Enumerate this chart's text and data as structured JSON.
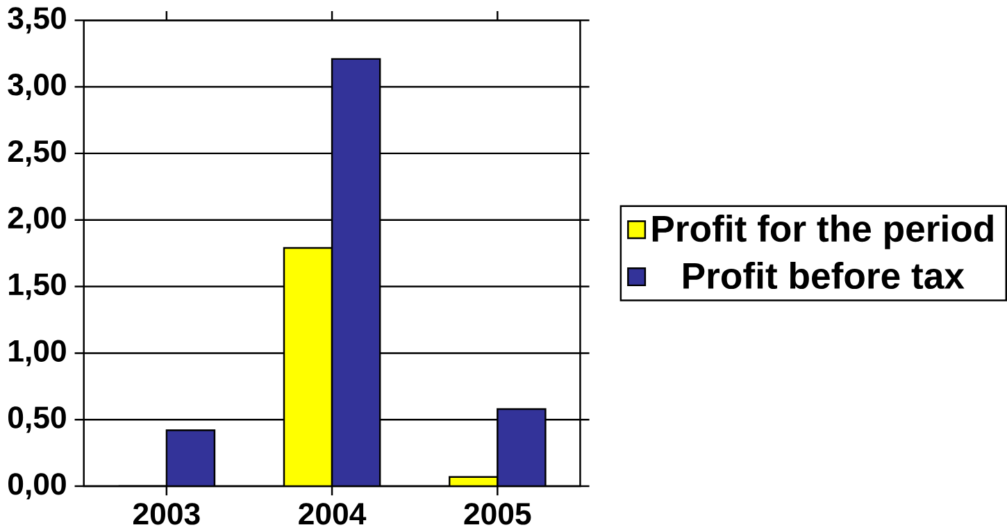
{
  "chart_data": {
    "type": "bar",
    "categories": [
      "2003",
      "2004",
      "2005"
    ],
    "series": [
      {
        "name": "Profit for the period",
        "color": "#ffff00",
        "values": [
          0,
          1.79,
          0.07
        ]
      },
      {
        "name": "Profit before tax",
        "color": "#333399",
        "values": [
          0.42,
          3.21,
          0.58
        ]
      }
    ],
    "ylim": [
      0,
      3.5
    ],
    "yticks": [
      {
        "value": 0,
        "label": "0,00"
      },
      {
        "value": 0.5,
        "label": "0,50"
      },
      {
        "value": 1,
        "label": "1,00"
      },
      {
        "value": 1.5,
        "label": "1,50"
      },
      {
        "value": 2,
        "label": "2,00"
      },
      {
        "value": 2.5,
        "label": "2,50"
      },
      {
        "value": 3,
        "label": "3,00"
      },
      {
        "value": 3.5,
        "label": "3,50"
      }
    ],
    "grid": "y",
    "legend": "right"
  }
}
